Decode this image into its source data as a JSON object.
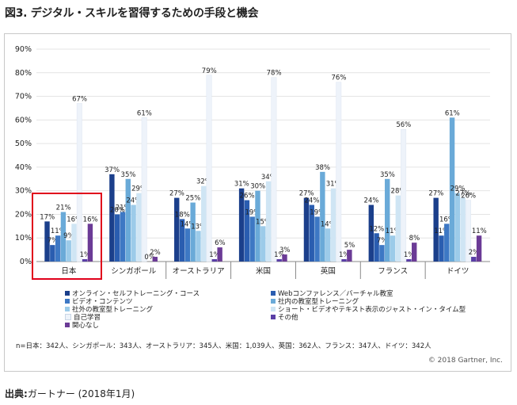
{
  "figure_title": "図3. デジタル・スキルを習得するための手段と機会",
  "note": "n=日本：342人、シンガポール：343人、オーストラリア：345人、米国：1,039人、英国：362人、フランス：347人、ドイツ：342人",
  "copyright": "© 2018 Gartner, Inc.",
  "source": {
    "label": "出典:",
    "value": "ガートナー (2018年1月)"
  },
  "chart_data": {
    "type": "bar",
    "title": "図3. デジタル・スキルを習得するための手段と機会",
    "categories": [
      "日本",
      "シンガポール",
      "オーストラリア",
      "米国",
      "英国",
      "フランス",
      "ドイツ"
    ],
    "highlighted_category": "日本",
    "ylim": [
      0,
      90
    ],
    "yticks": [
      "0%",
      "10%",
      "20%",
      "30%",
      "40%",
      "50%",
      "60%",
      "70%",
      "80%",
      "90%"
    ],
    "value_suffix": "%",
    "series": [
      {
        "name": "オンライン・セルフトレーニング・コース",
        "color": "#1b3f8b",
        "values": [
          17,
          37,
          27,
          31,
          27,
          24,
          27
        ]
      },
      {
        "name": "Webコンファレンス／バーチャル教室",
        "color": "#2a5db0",
        "values": [
          7,
          20,
          18,
          26,
          24,
          12,
          11
        ]
      },
      {
        "name": "ビデオ・コンテンツ",
        "color": "#3d78c4",
        "values": [
          11,
          21,
          14,
          19,
          19,
          7,
          16
        ]
      },
      {
        "name": "社内の教室型トレーニング",
        "color": "#6aaad8",
        "values": [
          21,
          35,
          25,
          30,
          38,
          35,
          61
        ]
      },
      {
        "name": "社外の教室型トレーニング",
        "color": "#9ccbe9",
        "values": [
          9,
          24,
          13,
          15,
          14,
          11,
          29
        ]
      },
      {
        "name": "ショート・ビデオやテキスト表示のジャスト・イン・タイム型",
        "color": "#cfe5f4",
        "values": [
          16,
          29,
          32,
          34,
          31,
          28,
          27
        ]
      },
      {
        "name": "自己学習",
        "color": "#eef3fa",
        "values": [
          67,
          61,
          79,
          78,
          76,
          56,
          26
        ]
      },
      {
        "name": "その他",
        "color": "#5a3fa6",
        "values": [
          1,
          0,
          1,
          1,
          1,
          1,
          2
        ]
      },
      {
        "name": "関心なし",
        "color": "#6b3b96",
        "values": [
          16,
          2,
          6,
          3,
          5,
          8,
          11
        ]
      }
    ],
    "legend": [
      {
        "name": "オンライン・セルフトレーニング・コース",
        "color": "#1b3f8b"
      },
      {
        "name": "Webコンファレンス／バーチャル教室",
        "color": "#2a5db0"
      },
      {
        "name": "ビデオ・コンテンツ",
        "color": "#3d78c4"
      },
      {
        "name": "社内の教室型トレーニング",
        "color": "#6aaad8"
      },
      {
        "name": "社外の教室型トレーニング",
        "color": "#9ccbe9"
      },
      {
        "name": "ショート・ビデオやテキスト表示のジャスト・イン・タイム型",
        "color": "#cfe5f4"
      },
      {
        "name": "自己学習",
        "color": "#eef3fa"
      },
      {
        "name": "その他",
        "color": "#5a3fa6"
      },
      {
        "name": "関心なし",
        "color": "#6b3b96"
      }
    ]
  }
}
